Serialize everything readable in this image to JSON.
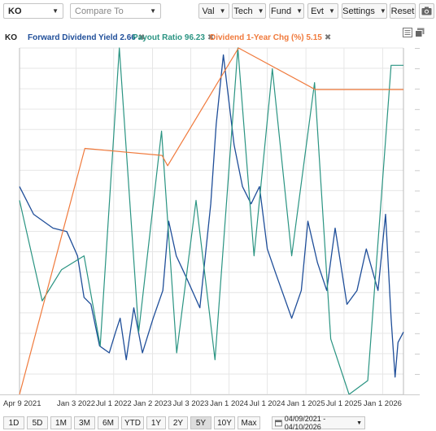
{
  "toolbar": {
    "symbol": "KO",
    "compare_placeholder": "Compare To",
    "buttons": [
      "Val",
      "Tech",
      "Fund",
      "Evt",
      "Settings"
    ],
    "reset": "Reset"
  },
  "legend": {
    "symbol": "KO",
    "series": [
      {
        "label": "Forward Dividend Yield 2.66",
        "color": "#1f4e99"
      },
      {
        "label": "Payout Ratio 96.23",
        "color": "#2a9482"
      },
      {
        "label": "Dividend 1-Year Chg (%) 5.15",
        "color": "#f07a3c"
      }
    ]
  },
  "ranges": {
    "items": [
      "1D",
      "5D",
      "1M",
      "3M",
      "6M",
      "YTD",
      "1Y",
      "2Y",
      "5Y",
      "10Y",
      "Max"
    ],
    "active": "5Y",
    "date_range": "04/09/2021 - 04/10/2026"
  },
  "chart_data": {
    "type": "line",
    "x_ticks": [
      "Apr 9 2021",
      "Jan 3 2022",
      "Jul 1 2022",
      "Jan 2 2023",
      "Jul 3 2023",
      "Jan 1 2024",
      "Jul 1 2024",
      "Jan 1 2025",
      "Jul 1 2025",
      "Jan 1 2026"
    ],
    "xlim": [
      "2021-04-09",
      "2026-04-10"
    ],
    "grid": true,
    "legend_position": "top-left",
    "series": [
      {
        "name": "Forward Dividend Yield",
        "color": "#1f4e99",
        "axis": "norm",
        "x": [
          "2021-04-09",
          "2021-06-15",
          "2021-09-15",
          "2021-11-20",
          "2022-01-10",
          "2022-02-10",
          "2022-03-15",
          "2022-04-25",
          "2022-06-10",
          "2022-07-10",
          "2022-08-01",
          "2022-08-30",
          "2022-10-05",
          "2022-11-15",
          "2023-01-05",
          "2023-02-20",
          "2023-03-20",
          "2023-04-25",
          "2023-06-10",
          "2023-08-15",
          "2023-10-06",
          "2023-11-01",
          "2023-12-05",
          "2024-01-25",
          "2024-03-05",
          "2024-04-15",
          "2024-05-25",
          "2024-07-01",
          "2024-08-10",
          "2024-09-20",
          "2024-10-25",
          "2024-12-10",
          "2025-01-10",
          "2025-02-25",
          "2025-04-10",
          "2025-05-20",
          "2025-07-15",
          "2025-09-01",
          "2025-10-15",
          "2025-12-10",
          "2026-01-15",
          "2026-02-10",
          "2026-03-01",
          "2026-03-15",
          "2026-04-10"
        ],
        "values": [
          0.6,
          0.52,
          0.48,
          0.47,
          0.4,
          0.28,
          0.26,
          0.14,
          0.12,
          0.18,
          0.22,
          0.1,
          0.25,
          0.12,
          0.22,
          0.3,
          0.5,
          0.4,
          0.34,
          0.25,
          0.55,
          0.78,
          0.98,
          0.72,
          0.6,
          0.55,
          0.6,
          0.42,
          0.35,
          0.28,
          0.22,
          0.3,
          0.5,
          0.38,
          0.3,
          0.48,
          0.26,
          0.3,
          0.42,
          0.3,
          0.52,
          0.22,
          0.05,
          0.15,
          0.18
        ]
      },
      {
        "name": "Payout Ratio",
        "color": "#2a9482",
        "axis": "norm",
        "x": [
          "2021-04-09",
          "2021-07-26",
          "2021-10-26",
          "2022-02-10",
          "2022-04-28",
          "2022-07-28",
          "2022-10-28",
          "2023-02-14",
          "2023-04-27",
          "2023-07-28",
          "2023-10-26",
          "2024-02-12",
          "2024-04-29",
          "2024-07-25",
          "2024-10-25",
          "2025-02-11",
          "2025-04-29",
          "2025-07-25",
          "2025-10-22",
          "2026-02-10",
          "2026-04-10"
        ],
        "values": [
          0.56,
          0.27,
          0.36,
          0.4,
          0.14,
          1.0,
          0.18,
          0.76,
          0.12,
          0.56,
          0.1,
          1.0,
          0.4,
          0.94,
          0.4,
          0.9,
          0.16,
          0.0,
          0.04,
          0.95,
          0.95
        ]
      },
      {
        "name": "Dividend 1-Year Chg (%)",
        "color": "#f07a3c",
        "axis": "norm",
        "x": [
          "2021-04-09",
          "2022-02-14",
          "2023-02-16",
          "2023-03-15",
          "2024-02-15",
          "2025-02-14",
          "2026-04-10"
        ],
        "values": [
          0.0,
          0.71,
          0.69,
          0.66,
          1.0,
          0.88,
          0.88
        ]
      }
    ]
  }
}
